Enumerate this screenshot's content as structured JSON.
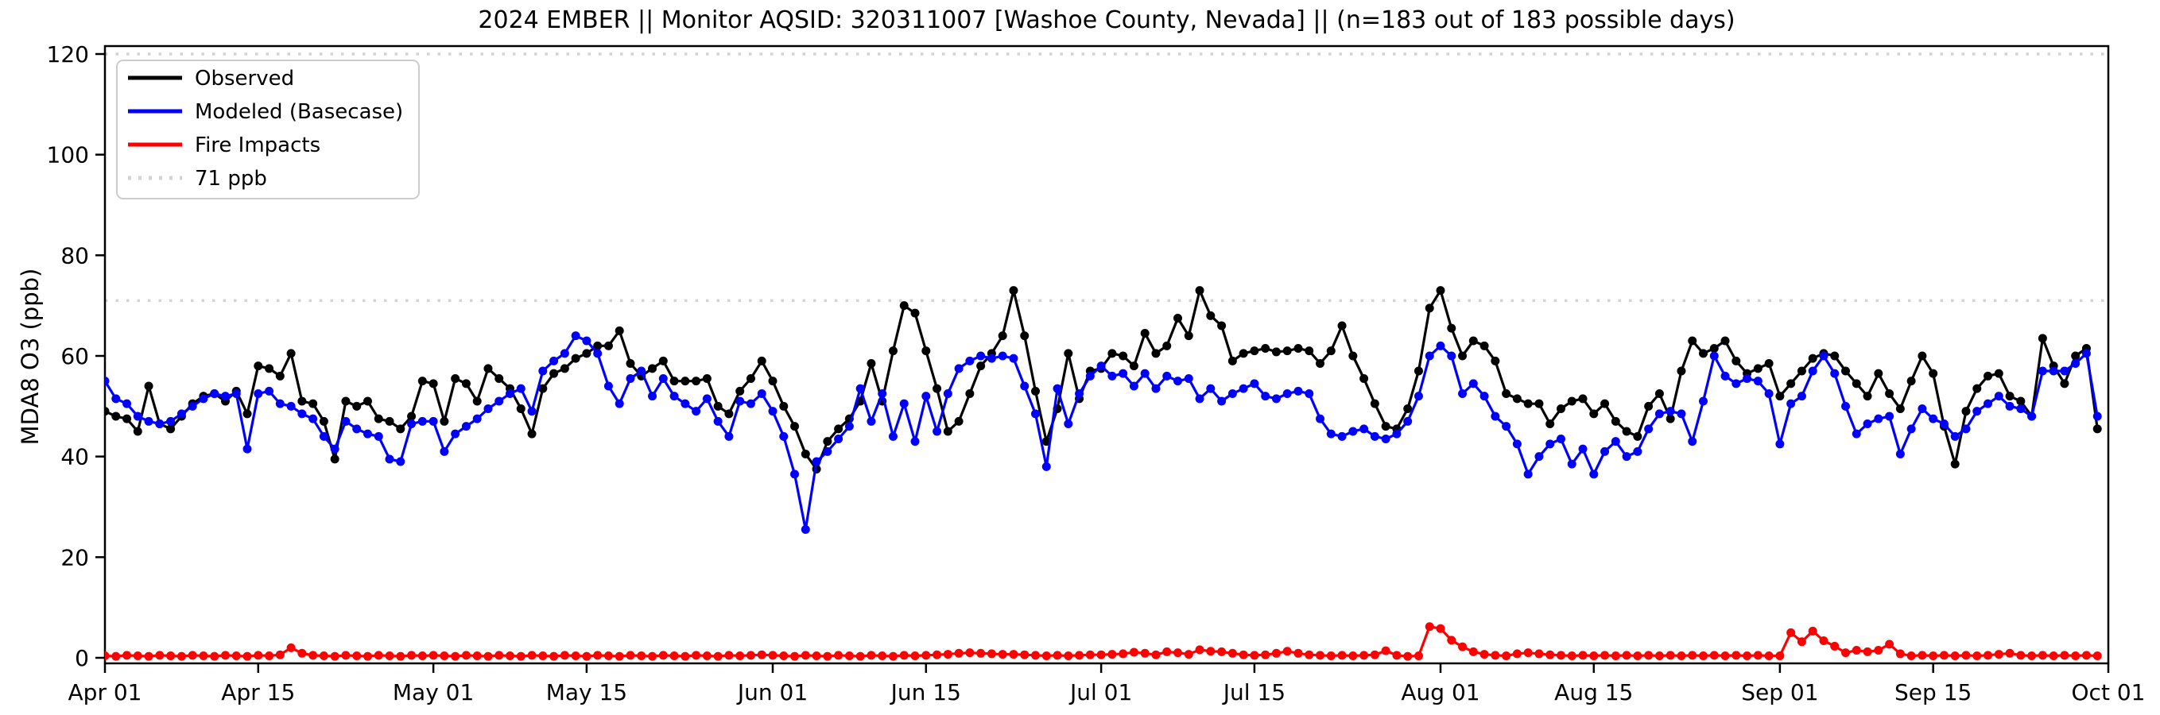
{
  "chart_data": {
    "type": "line",
    "title": "2024 EMBER || Monitor AQSID: 320311007 [Washoe County, Nevada] || (n=183 out of 183 possible days)",
    "ylabel": "MDA8 O3 (ppb)",
    "xlabel": "",
    "ylim": [
      0,
      120
    ],
    "yticks": [
      0,
      20,
      40,
      60,
      80,
      100,
      120
    ],
    "n_days": 183,
    "date_range": [
      "Apr 01",
      "Oct 01"
    ],
    "x_ticks": [
      {
        "day": 0,
        "label": "Apr 01"
      },
      {
        "day": 14,
        "label": "Apr 15"
      },
      {
        "day": 30,
        "label": "May 01"
      },
      {
        "day": 44,
        "label": "May 15"
      },
      {
        "day": 61,
        "label": "Jun 01"
      },
      {
        "day": 75,
        "label": "Jun 15"
      },
      {
        "day": 91,
        "label": "Jul 01"
      },
      {
        "day": 105,
        "label": "Jul 15"
      },
      {
        "day": 122,
        "label": "Aug 01"
      },
      {
        "day": 136,
        "label": "Aug 15"
      },
      {
        "day": 153,
        "label": "Sep 01"
      },
      {
        "day": 167,
        "label": "Sep 15"
      },
      {
        "day": 183,
        "label": "Oct 01"
      }
    ],
    "grid": false,
    "legend_position": "upper-left",
    "ref_lines": [
      {
        "value": 71,
        "label": "71 ppb",
        "color": "#d3d3d3",
        "style": "dotted"
      },
      {
        "value": 120,
        "label": "",
        "color": "#d3d3d3",
        "style": "dotted"
      }
    ],
    "legend": [
      {
        "label": "Observed",
        "color": "#000000",
        "dash": false
      },
      {
        "label": "Modeled (Basecase)",
        "color": "#0000ff",
        "dash": false
      },
      {
        "label": "Fire Impacts",
        "color": "#ff0000",
        "dash": false
      },
      {
        "label": "71 ppb",
        "color": "#d3d3d3",
        "dash": true
      }
    ],
    "series": [
      {
        "name": "Observed",
        "color": "#000000",
        "values": [
          49,
          48,
          47.5,
          45,
          54,
          46.5,
          45.5,
          48,
          50.5,
          52,
          52.5,
          51,
          53,
          48.5,
          58,
          57.5,
          56,
          60.5,
          51,
          50.5,
          47,
          39.5,
          51,
          50,
          51,
          47.5,
          47,
          45.5,
          48,
          55,
          54.5,
          47,
          55.5,
          54.5,
          51,
          57.5,
          55.5,
          53.5,
          49.5,
          44.5,
          53.5,
          56.5,
          57.5,
          59.5,
          60.5,
          62,
          62,
          65,
          58.5,
          56,
          57.5,
          59,
          55,
          55,
          55,
          55.5,
          50,
          48.5,
          53,
          55.5,
          59,
          55,
          50,
          46,
          40.5,
          37.5,
          43,
          45.5,
          47.5,
          51,
          58.5,
          51,
          61,
          70,
          68.5,
          61,
          53.5,
          45,
          47,
          52.5,
          58,
          60.5,
          64,
          73,
          64,
          53,
          43,
          49.5,
          60.5,
          51.5,
          57,
          57.5,
          60.5,
          60,
          58,
          64.5,
          60.5,
          62,
          67.5,
          64,
          73,
          68,
          66,
          59,
          60.5,
          61,
          61.5,
          60.8,
          61,
          61.5,
          61,
          58.5,
          61,
          66,
          60,
          55.5,
          50.5,
          46,
          45.5,
          49.5,
          57,
          69.5,
          73,
          65.5,
          60,
          63,
          62,
          59,
          52.5,
          51.5,
          50.5,
          50.5,
          46.5,
          49.5,
          51,
          51.5,
          48.5,
          50.5,
          47,
          45,
          44,
          50,
          52.5,
          47.5,
          57,
          63,
          60.5,
          61.5,
          63,
          59,
          56.5,
          57.5,
          58.5,
          52,
          54.5,
          57,
          59.5,
          60.5,
          60,
          57,
          54.5,
          52,
          56.5,
          52.5,
          49.5,
          55,
          60,
          56.5,
          46,
          38.5,
          49,
          53.5,
          56,
          56.5,
          52,
          51,
          48,
          63.5,
          58,
          54.5,
          60,
          61.5,
          45.5
        ]
      },
      {
        "name": "Modeled (Basecase)",
        "color": "#0000ff",
        "values": [
          55,
          51.5,
          50.5,
          48,
          47,
          46.5,
          47,
          48.5,
          50,
          51.5,
          52.5,
          52,
          52.5,
          41.5,
          52.5,
          53,
          50.5,
          50,
          48.5,
          47.5,
          44,
          41.5,
          47,
          45.5,
          44.5,
          44,
          39.5,
          39,
          46.5,
          47,
          47,
          41,
          44.5,
          46,
          47.5,
          49.5,
          51,
          52.5,
          53.5,
          49,
          57,
          59,
          60.5,
          64,
          63,
          60.5,
          54,
          50.5,
          55.5,
          57,
          52,
          55.5,
          52,
          50.5,
          49,
          51.5,
          47,
          44,
          51,
          50.5,
          52.5,
          49,
          44,
          36.5,
          25.5,
          39,
          41,
          43.5,
          46,
          53.5,
          47,
          52.5,
          44,
          50.5,
          43,
          52,
          45,
          52.5,
          57.5,
          59,
          60,
          59.5,
          60,
          59.5,
          54,
          48.5,
          38,
          53.5,
          46.5,
          52.5,
          56,
          58,
          56,
          56.5,
          54,
          56.5,
          53.5,
          56,
          55,
          55.5,
          51.5,
          53.5,
          51,
          52.5,
          53.5,
          54.5,
          52,
          51.5,
          52.5,
          53,
          52.5,
          47.5,
          44.5,
          44,
          45,
          45.5,
          44,
          43.5,
          44.5,
          47,
          52,
          60,
          62,
          60,
          52.5,
          54.5,
          52,
          48,
          46,
          42.5,
          36.5,
          40,
          42.5,
          43.5,
          38.5,
          41.5,
          36.5,
          41,
          43,
          40,
          41,
          45.5,
          48.5,
          49,
          48.5,
          43,
          51,
          60,
          56,
          54.5,
          55.5,
          55,
          52.5,
          42.5,
          50.5,
          52,
          57,
          60,
          56.5,
          50,
          44.5,
          46.5,
          47.5,
          48,
          40.5,
          45.5,
          49.5,
          47.5,
          46.5,
          44,
          45.5,
          49,
          50.5,
          52,
          50,
          49.5,
          48,
          57,
          57,
          57,
          58.5,
          60.5,
          48
        ]
      },
      {
        "name": "Fire Impacts",
        "color": "#ff0000",
        "values": [
          0.4,
          0.3,
          0.5,
          0.4,
          0.3,
          0.5,
          0.4,
          0.3,
          0.5,
          0.4,
          0.3,
          0.5,
          0.4,
          0.3,
          0.5,
          0.4,
          0.6,
          2.0,
          0.9,
          0.5,
          0.4,
          0.3,
          0.5,
          0.4,
          0.3,
          0.5,
          0.4,
          0.3,
          0.5,
          0.4,
          0.5,
          0.4,
          0.3,
          0.5,
          0.4,
          0.3,
          0.5,
          0.4,
          0.3,
          0.5,
          0.4,
          0.3,
          0.5,
          0.4,
          0.3,
          0.5,
          0.4,
          0.3,
          0.5,
          0.4,
          0.3,
          0.5,
          0.4,
          0.3,
          0.5,
          0.4,
          0.3,
          0.5,
          0.4,
          0.5,
          0.6,
          0.5,
          0.4,
          0.3,
          0.5,
          0.4,
          0.3,
          0.5,
          0.4,
          0.3,
          0.5,
          0.4,
          0.3,
          0.5,
          0.4,
          0.5,
          0.6,
          0.7,
          0.9,
          1.0,
          0.9,
          0.8,
          0.7,
          0.7,
          0.6,
          0.5,
          0.4,
          0.5,
          0.4,
          0.5,
          0.6,
          0.6,
          0.7,
          0.8,
          1.1,
          0.9,
          0.6,
          1.2,
          1.0,
          0.7,
          1.6,
          1.3,
          1.2,
          0.9,
          0.6,
          0.5,
          0.6,
          0.9,
          1.3,
          0.9,
          0.6,
          0.5,
          0.4,
          0.5,
          0.4,
          0.5,
          0.6,
          1.4,
          0.5,
          0.3,
          0.4,
          6.2,
          5.8,
          3.5,
          2.2,
          1.2,
          0.7,
          0.5,
          0.4,
          0.8,
          1.0,
          0.8,
          0.6,
          0.5,
          0.4,
          0.5,
          0.4,
          0.5,
          0.4,
          0.5,
          0.4,
          0.5,
          0.4,
          0.5,
          0.4,
          0.5,
          0.4,
          0.5,
          0.4,
          0.5,
          0.4,
          0.5,
          0.4,
          0.4,
          5.0,
          3.2,
          5.3,
          3.4,
          2.3,
          1.0,
          1.5,
          1.2,
          1.5,
          2.7,
          0.8,
          0.4,
          0.5,
          0.4,
          0.5,
          0.4,
          0.5,
          0.4,
          0.5,
          0.7,
          0.9,
          0.5,
          0.4,
          0.5,
          0.4,
          0.5,
          0.4,
          0.5,
          0.4
        ]
      }
    ]
  }
}
